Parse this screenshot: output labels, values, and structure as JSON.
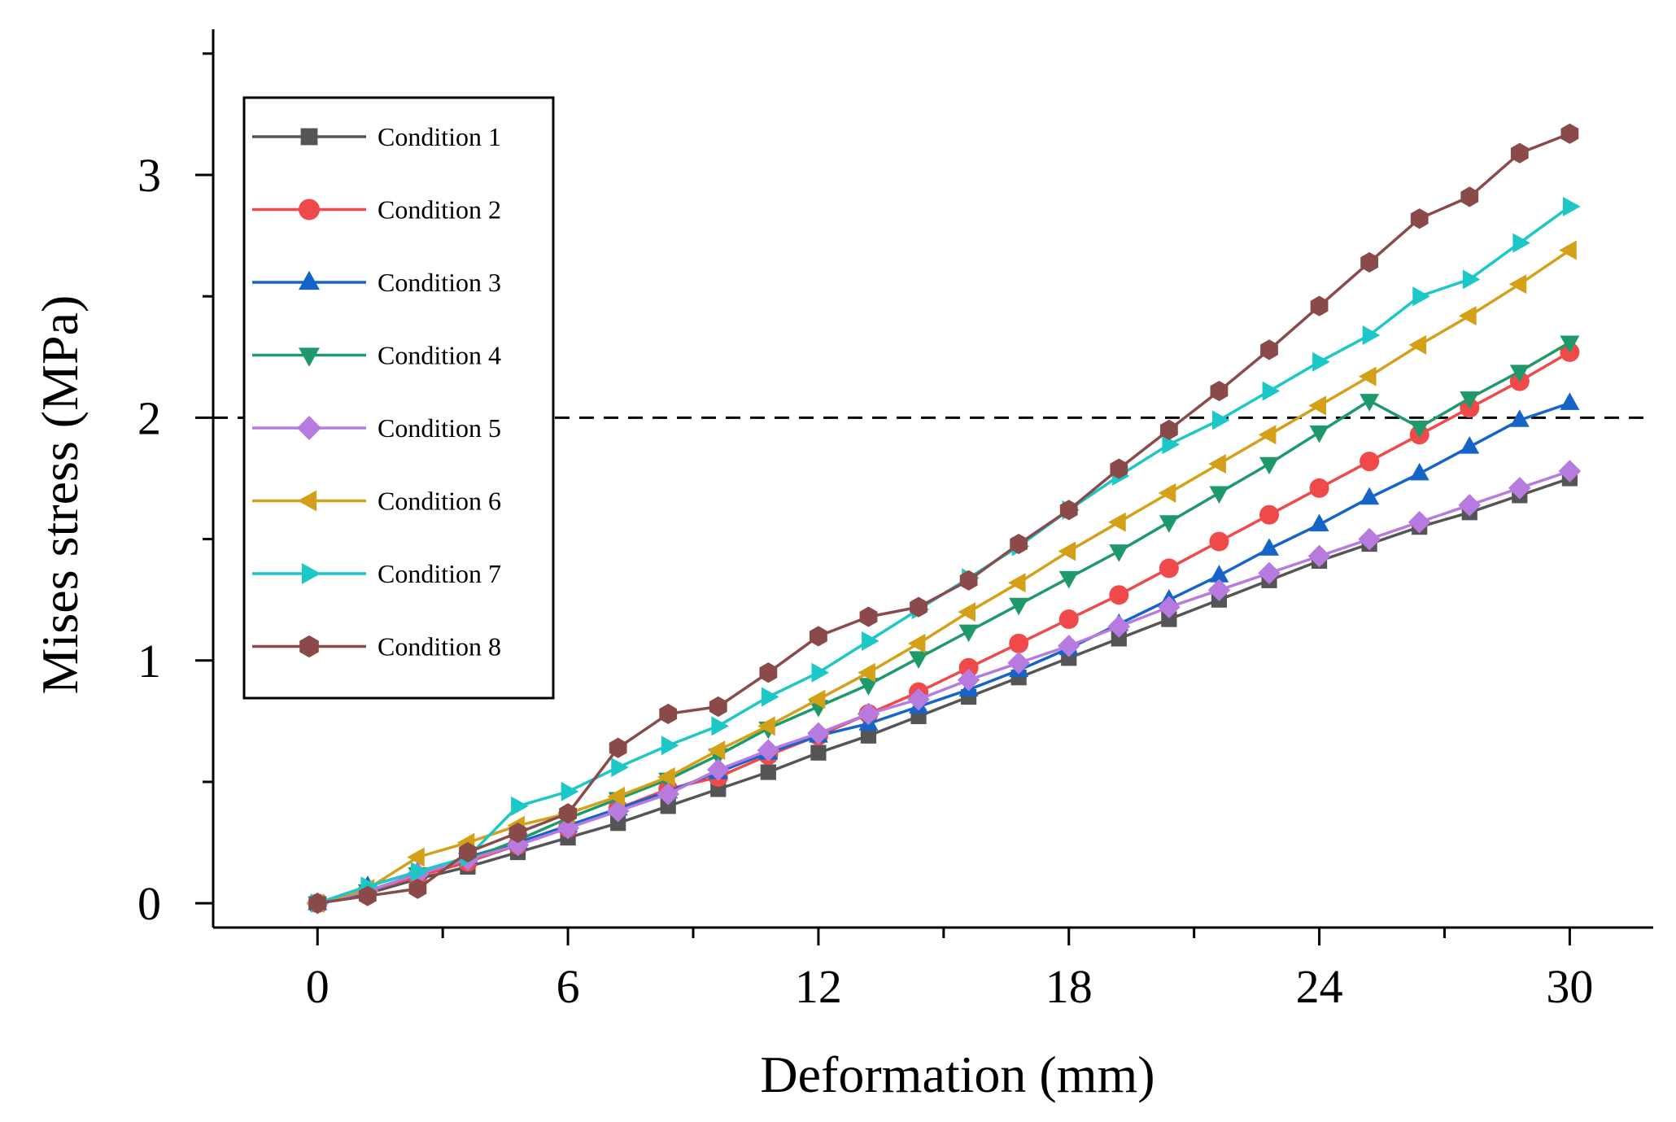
{
  "chart_data": {
    "type": "line",
    "title": "",
    "xlabel": "Deformation (mm)",
    "ylabel": "Mises stress (MPa)",
    "xlim": [
      -2.5,
      32
    ],
    "ylim": [
      -0.1,
      3.6
    ],
    "xticks": [
      0,
      6,
      12,
      18,
      24,
      30
    ],
    "yticks": [
      0,
      1,
      2,
      3
    ],
    "xtick_labels": [
      "0",
      "6",
      "12",
      "18",
      "24",
      "30"
    ],
    "ytick_labels": [
      "0",
      "1",
      "2",
      "3"
    ],
    "reference_line": {
      "y": 2,
      "style": "dashed",
      "color": "#000000"
    },
    "legend_position": "top-left",
    "grid": false,
    "x": [
      0,
      1.2,
      2.4,
      3.6,
      4.8,
      6.0,
      7.2,
      8.4,
      9.6,
      10.8,
      12.0,
      13.2,
      14.4,
      15.6,
      16.8,
      18.0,
      19.2,
      20.4,
      21.6,
      22.8,
      24.0,
      25.2,
      26.4,
      27.6,
      28.8,
      30.0
    ],
    "series": [
      {
        "name": "Condition 1",
        "color": "#555555",
        "marker": "square",
        "values": [
          0,
          0.04,
          0.1,
          0.15,
          0.21,
          0.27,
          0.33,
          0.4,
          0.47,
          0.54,
          0.62,
          0.69,
          0.77,
          0.85,
          0.93,
          1.01,
          1.09,
          1.17,
          1.25,
          1.33,
          1.41,
          1.48,
          1.55,
          1.61,
          1.68,
          1.75
        ]
      },
      {
        "name": "Condition 2",
        "color": "#f0494a",
        "marker": "circle",
        "values": [
          0,
          0.05,
          0.11,
          0.17,
          0.24,
          0.31,
          0.39,
          0.47,
          0.52,
          0.61,
          0.69,
          0.78,
          0.87,
          0.97,
          1.07,
          1.17,
          1.27,
          1.38,
          1.49,
          1.6,
          1.71,
          1.82,
          1.93,
          2.04,
          2.15,
          2.27
        ]
      },
      {
        "name": "Condition 3",
        "color": "#1565c8",
        "marker": "triangle-up",
        "values": [
          0,
          0.07,
          0.13,
          0.19,
          0.25,
          0.32,
          0.39,
          0.46,
          0.54,
          0.62,
          0.69,
          0.74,
          0.81,
          0.88,
          0.96,
          1.05,
          1.15,
          1.25,
          1.35,
          1.46,
          1.56,
          1.67,
          1.77,
          1.88,
          1.99,
          2.06
        ]
      },
      {
        "name": "Condition 4",
        "color": "#1e9a6a",
        "marker": "triangle-down",
        "values": [
          0,
          0.05,
          0.12,
          0.18,
          0.26,
          0.35,
          0.43,
          0.51,
          0.61,
          0.72,
          0.81,
          0.9,
          1.01,
          1.12,
          1.23,
          1.34,
          1.45,
          1.57,
          1.69,
          1.81,
          1.94,
          2.07,
          1.96,
          2.08,
          2.19,
          2.31
        ]
      },
      {
        "name": "Condition 5",
        "color": "#b77be0",
        "marker": "diamond",
        "values": [
          0,
          0.05,
          0.12,
          0.18,
          0.24,
          0.31,
          0.38,
          0.45,
          0.55,
          0.63,
          0.7,
          0.78,
          0.84,
          0.92,
          0.99,
          1.06,
          1.14,
          1.22,
          1.29,
          1.36,
          1.43,
          1.5,
          1.57,
          1.64,
          1.71,
          1.78
        ]
      },
      {
        "name": "Condition 6",
        "color": "#d4a017",
        "marker": "triangle-left",
        "values": [
          0,
          0.06,
          0.19,
          0.25,
          0.32,
          0.37,
          0.44,
          0.52,
          0.63,
          0.73,
          0.84,
          0.95,
          1.07,
          1.2,
          1.32,
          1.45,
          1.57,
          1.69,
          1.81,
          1.93,
          2.05,
          2.17,
          2.3,
          2.42,
          2.55,
          2.69
        ]
      },
      {
        "name": "Condition 7",
        "color": "#1cc7c7",
        "marker": "triangle-right",
        "values": [
          0,
          0.07,
          0.13,
          0.19,
          0.4,
          0.46,
          0.56,
          0.65,
          0.73,
          0.85,
          0.95,
          1.08,
          1.21,
          1.34,
          1.47,
          1.62,
          1.76,
          1.89,
          1.99,
          2.11,
          2.23,
          2.34,
          2.5,
          2.57,
          2.72,
          2.87
        ]
      },
      {
        "name": "Condition 8",
        "color": "#8b4a4a",
        "marker": "hexagon",
        "values": [
          0,
          0.03,
          0.06,
          0.21,
          0.29,
          0.37,
          0.64,
          0.78,
          0.81,
          0.95,
          1.1,
          1.18,
          1.22,
          1.33,
          1.48,
          1.62,
          1.79,
          1.95,
          2.11,
          2.28,
          2.46,
          2.64,
          2.82,
          2.91,
          3.09,
          3.17
        ]
      }
    ]
  }
}
